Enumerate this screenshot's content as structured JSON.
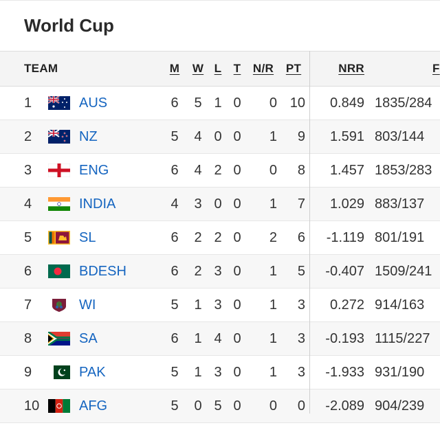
{
  "title": "World Cup",
  "headers": {
    "team": "TEAM",
    "m": "M",
    "w": "W",
    "l": "L",
    "t": "T",
    "nr": "N/R",
    "pt": "PT",
    "nrr": "NRR",
    "f": "F"
  },
  "rows": [
    {
      "rank": "1",
      "team": "AUS",
      "m": "6",
      "w": "5",
      "l": "1",
      "t": "0",
      "nr": "0",
      "pt": "10",
      "nrr": "0.849",
      "f": "1835/284"
    },
    {
      "rank": "2",
      "team": "NZ",
      "m": "5",
      "w": "4",
      "l": "0",
      "t": "0",
      "nr": "1",
      "pt": "9",
      "nrr": "1.591",
      "f": "803/144"
    },
    {
      "rank": "3",
      "team": "ENG",
      "m": "6",
      "w": "4",
      "l": "2",
      "t": "0",
      "nr": "0",
      "pt": "8",
      "nrr": "1.457",
      "f": "1853/283"
    },
    {
      "rank": "4",
      "team": "INDIA",
      "m": "4",
      "w": "3",
      "l": "0",
      "t": "0",
      "nr": "1",
      "pt": "7",
      "nrr": "1.029",
      "f": "883/137"
    },
    {
      "rank": "5",
      "team": "SL",
      "m": "6",
      "w": "2",
      "l": "2",
      "t": "0",
      "nr": "2",
      "pt": "6",
      "nrr": "-1.119",
      "f": "801/191"
    },
    {
      "rank": "6",
      "team": "BDESH",
      "m": "6",
      "w": "2",
      "l": "3",
      "t": "0",
      "nr": "1",
      "pt": "5",
      "nrr": "-0.407",
      "f": "1509/241"
    },
    {
      "rank": "7",
      "team": "WI",
      "m": "5",
      "w": "1",
      "l": "3",
      "t": "0",
      "nr": "1",
      "pt": "3",
      "nrr": "0.272",
      "f": "914/163"
    },
    {
      "rank": "8",
      "team": "SA",
      "m": "6",
      "w": "1",
      "l": "4",
      "t": "0",
      "nr": "1",
      "pt": "3",
      "nrr": "-0.193",
      "f": "1115/227"
    },
    {
      "rank": "9",
      "team": "PAK",
      "m": "5",
      "w": "1",
      "l": "3",
      "t": "0",
      "nr": "1",
      "pt": "3",
      "nrr": "-1.933",
      "f": "931/190"
    },
    {
      "rank": "10",
      "team": "AFG",
      "m": "5",
      "w": "0",
      "l": "5",
      "t": "0",
      "nr": "0",
      "pt": "0",
      "nrr": "-2.089",
      "f": "904/239"
    }
  ],
  "flags": [
    "australia-flag-icon",
    "new-zealand-flag-icon",
    "england-flag-icon",
    "india-flag-icon",
    "sri-lanka-flag-icon",
    "bangladesh-flag-icon",
    "west-indies-flag-icon",
    "south-africa-flag-icon",
    "pakistan-flag-icon",
    "afghanistan-flag-icon"
  ],
  "colors": {
    "team_link": "#1565c0",
    "header_bg": "#f4f4f4",
    "alt_row_bg": "#f7f7f7"
  }
}
